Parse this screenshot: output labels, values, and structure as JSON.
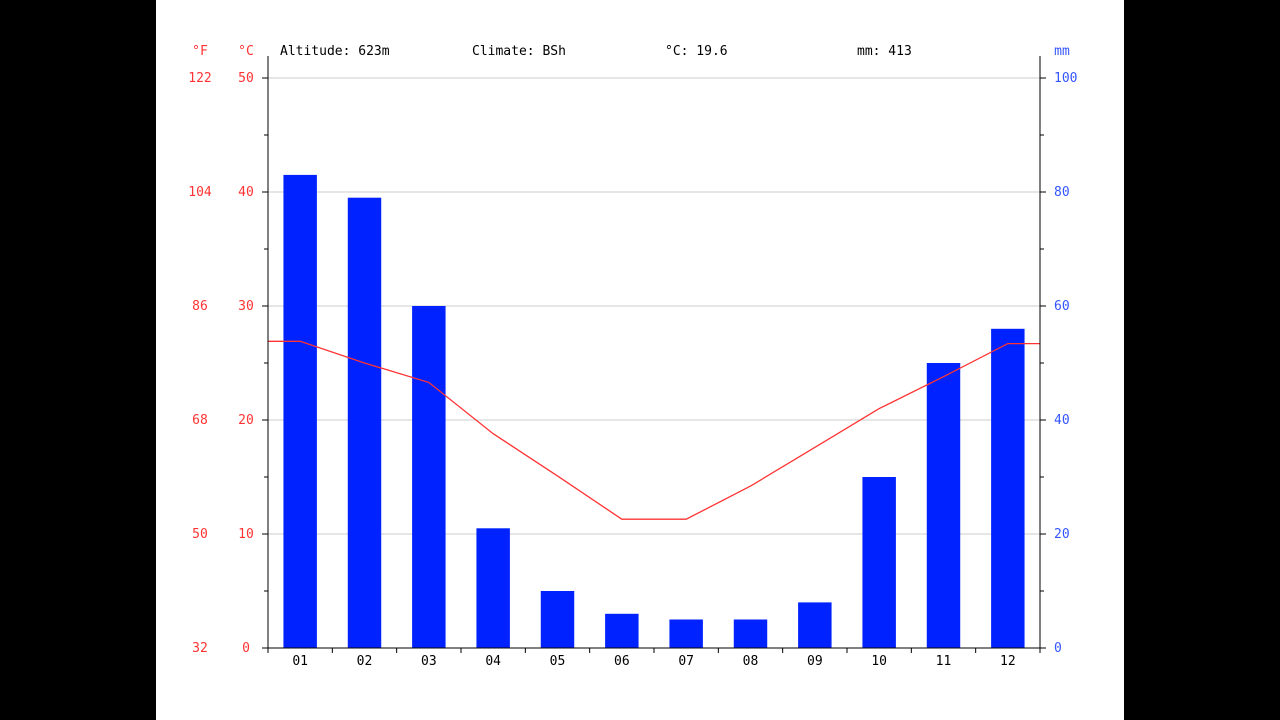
{
  "header": {
    "unit_f": "°F",
    "unit_c": "°C",
    "unit_mm": "mm",
    "altitude": "Altitude: 623m",
    "climate": "Climate: BSh",
    "temp_mean": "°C: 19.6",
    "precip_total": "mm: 413"
  },
  "colors": {
    "temperature": "#ff3333",
    "precipitation": "#0022ff",
    "grid": "#cccccc",
    "axis": "#000000"
  },
  "chart_data": {
    "type": "bar",
    "categories": [
      "01",
      "02",
      "03",
      "04",
      "05",
      "06",
      "07",
      "08",
      "09",
      "10",
      "11",
      "12"
    ],
    "series": [
      {
        "name": "mm",
        "type": "bar",
        "axis": "right",
        "values": [
          83,
          79,
          60,
          21,
          10,
          6,
          5,
          5,
          8,
          30,
          50,
          56
        ]
      },
      {
        "name": "°C",
        "type": "line",
        "axis": "left",
        "values": [
          26.9,
          25.0,
          23.3,
          18.8,
          15.1,
          11.3,
          11.3,
          14.2,
          17.6,
          21.0,
          23.8,
          26.7
        ]
      }
    ],
    "y_left_celsius": {
      "range": [
        0,
        50
      ],
      "ticks": [
        "0",
        "10",
        "20",
        "30",
        "40",
        "50"
      ]
    },
    "y_left_fahrenheit": {
      "ticks": [
        "32",
        "50",
        "68",
        "86",
        "104",
        "122"
      ]
    },
    "y_right_mm": {
      "range": [
        0,
        100
      ],
      "ticks": [
        "0",
        "20",
        "40",
        "60",
        "80",
        "100"
      ]
    },
    "grid": true
  }
}
